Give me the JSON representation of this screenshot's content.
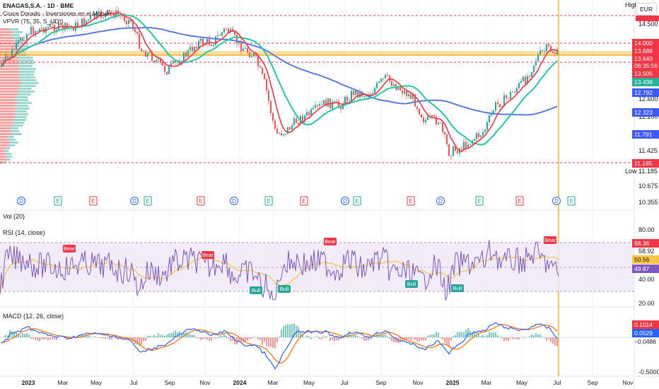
{
  "legend": {
    "symbol": "ENAGAS,S.A. · 1D · BME",
    "study1": "Cruce Dorado - Inversiones en el Mundo",
    "study2": "VPVR (75, 35, S_UD*)"
  },
  "price_axis": {
    "currency": "EUR",
    "high_label": "High",
    "low_label": "Low",
    "ticks": [
      "14.500",
      "12.600",
      "12.200",
      "11.425",
      "10.675",
      "10.355"
    ],
    "badges": [
      {
        "text": "14.000",
        "color": "#f23645"
      },
      {
        "text": "13.688",
        "color": "#f23645"
      },
      {
        "text": "13.640",
        "color": "#f23645"
      },
      {
        "text": "08:35:56",
        "color": "#f23645"
      },
      {
        "text": "13.505",
        "color": "#f23645"
      },
      {
        "text": "13.438",
        "color": "#26b39a"
      },
      {
        "text": "12.792",
        "color": "#3d5afe"
      },
      {
        "text": "12.323",
        "color": "#3d5afe"
      },
      {
        "text": "11.791",
        "color": "#3d5afe"
      },
      {
        "text": "11.185",
        "color": "#f23645"
      }
    ],
    "low_value": "11.185"
  },
  "vol_pane": {
    "label": "Vol (20)"
  },
  "rsi_pane": {
    "label": "RSI (14, close)",
    "ticks": [
      "80.00",
      "58.92",
      "40.00",
      "20.00"
    ],
    "badges": [
      {
        "text": "68.36",
        "color": "#f23645"
      },
      {
        "text": "50.56",
        "color": "#f7c540"
      },
      {
        "text": "49.87",
        "color": "#7e57c2"
      }
    ],
    "markers": [
      {
        "text": "Bear",
        "kind": "bear"
      },
      {
        "text": "Bear",
        "kind": "bear"
      },
      {
        "text": "Bear",
        "kind": "bear"
      },
      {
        "text": "Bear",
        "kind": "bear"
      },
      {
        "text": "Bull",
        "kind": "bull"
      },
      {
        "text": "Bull",
        "kind": "bull"
      },
      {
        "text": "Bull",
        "kind": "bull"
      },
      {
        "text": "Bull",
        "kind": "bull"
      }
    ]
  },
  "macd_pane": {
    "label": "MACD (12, 26, close)",
    "ticks": [
      "-0.5000"
    ],
    "badges": [
      {
        "text": "0.1014",
        "color": "#f23645"
      },
      {
        "text": "0.0529",
        "color": "#2962ff"
      },
      {
        "text": "−0.0486",
        "color": "#ffffff"
      }
    ]
  },
  "time_axis": [
    "2023",
    "Mar",
    "May",
    "Jul",
    "Sep",
    "Nov",
    "2024",
    "Mar",
    "May",
    "Jul",
    "Sep",
    "Nov",
    "2025",
    "Mar",
    "May",
    "Jul",
    "Sep",
    "Nov"
  ],
  "event_markers": [
    "D",
    "E",
    "E",
    "D",
    "E",
    "E",
    "D",
    "E",
    "E",
    "D",
    "E",
    "E",
    "D",
    "E",
    "E",
    "D",
    "E"
  ],
  "colors": {
    "red_ma": "#f23645",
    "teal_ma": "#26c6a6",
    "blue_ma": "#5b7be0",
    "candle_up": "#26a69a",
    "candle_down": "#ef5350",
    "rsi_line": "#7e57c2",
    "rsi_band": "#ede7f6",
    "macd_line": "#2962ff",
    "signal_line": "#ff6d00",
    "highlight": "#f7a500"
  }
}
